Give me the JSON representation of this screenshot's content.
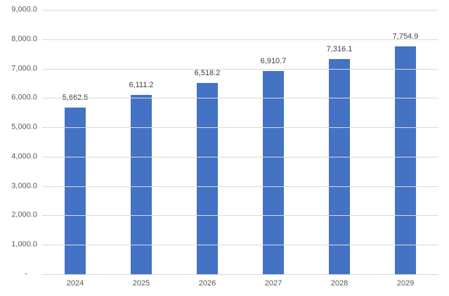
{
  "chart_data": {
    "type": "bar",
    "categories": [
      "2024",
      "2025",
      "2026",
      "2027",
      "2028",
      "2029"
    ],
    "values": [
      5662.5,
      6111.2,
      6518.2,
      6910.7,
      7316.1,
      7754.9
    ],
    "data_labels": [
      "5,662.5",
      "6,111.2",
      "6,518.2",
      "6,910.7",
      "7,316.1",
      "7,754.9"
    ],
    "ylim": [
      0,
      9000
    ],
    "ytick_interval": 1000,
    "ytick_labels": [
      "-",
      "1,000.0",
      "2,000.0",
      "3,000.0",
      "4,000.0",
      "5,000.0",
      "6,000.0",
      "7,000.0",
      "8,000.0",
      "9,000.0"
    ],
    "grid": true,
    "legend": false,
    "title": "",
    "xlabel": "",
    "ylabel": "",
    "colors": {
      "bar": "#4472C4",
      "gridline": "#D9D9D9",
      "axis_line": "#D6D6D6",
      "axis_label": "#595959",
      "data_label": "#404040",
      "background": "#FFFFFF"
    }
  }
}
